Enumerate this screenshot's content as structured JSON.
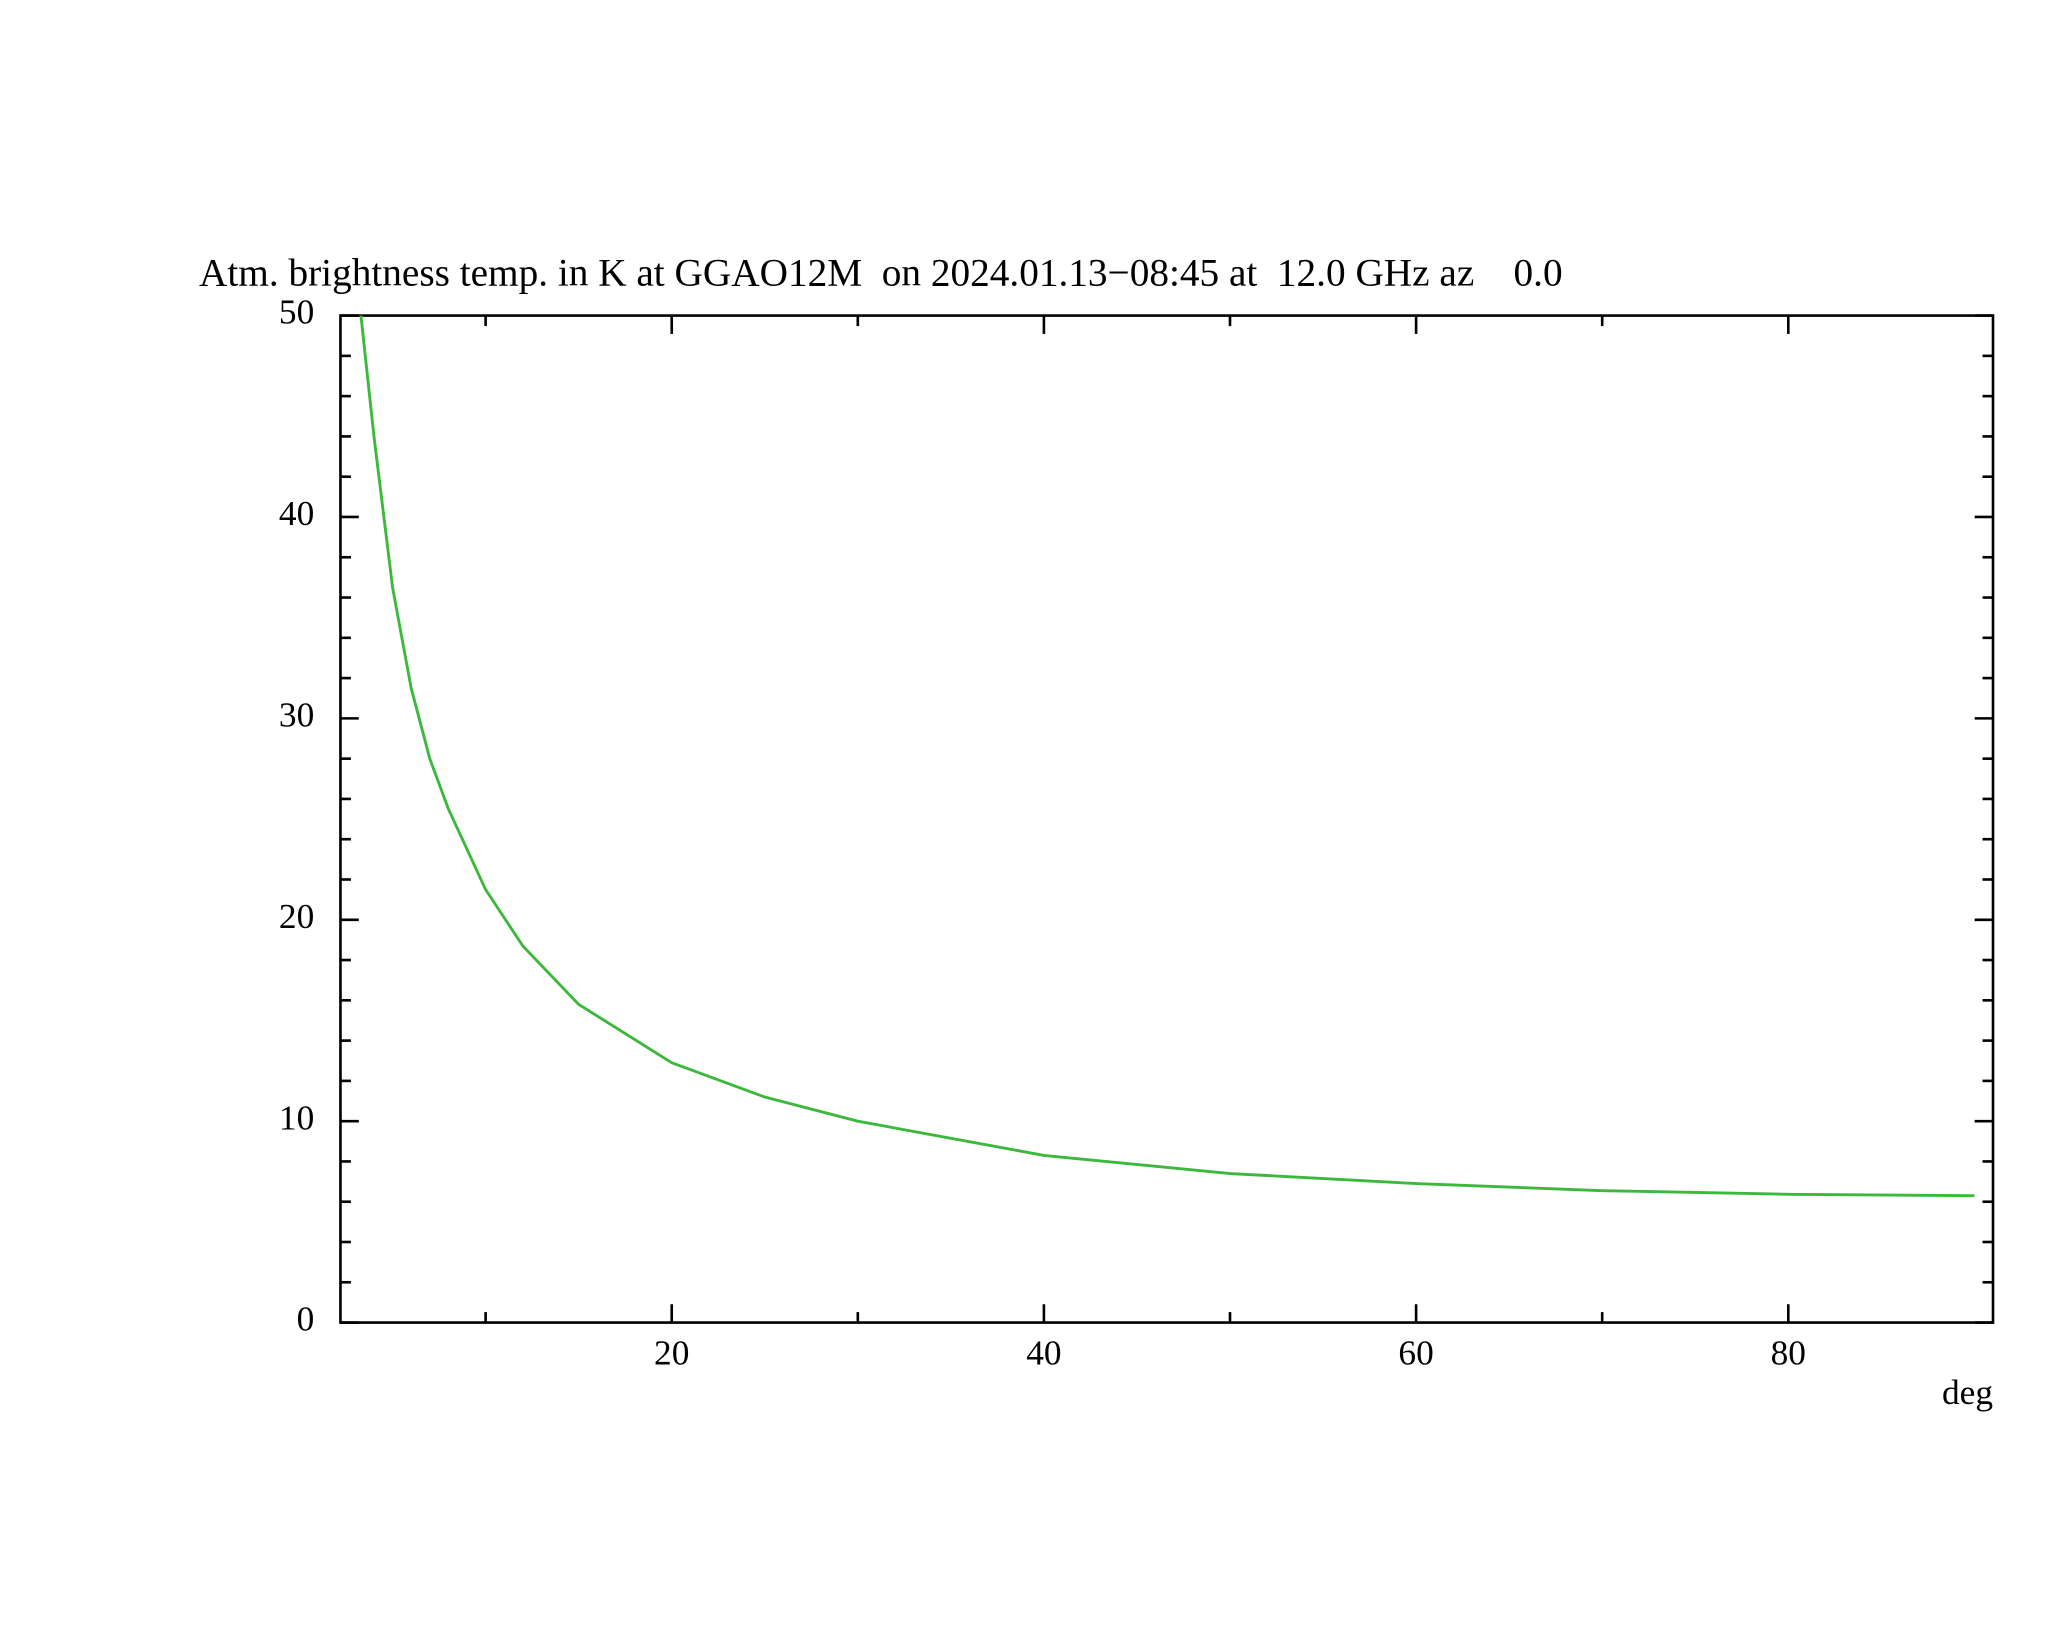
{
  "chart_data": {
    "type": "line",
    "title": "Atm. brightness temp. in K at GGAO12M  on 2024.01.13−08:45 at  12.0 GHz az    0.0",
    "x_label": "deg",
    "x": [
      3.3,
      4,
      5,
      6,
      7,
      8,
      10,
      12,
      15,
      20,
      25,
      30,
      40,
      50,
      60,
      70,
      80,
      90
    ],
    "series": [
      {
        "color": "#3cb83c",
        "values": [
          50,
          44,
          36.5,
          31.5,
          28,
          25.5,
          21.5,
          18.7,
          15.8,
          12.9,
          11.2,
          10.0,
          8.3,
          7.4,
          6.9,
          6.55,
          6.37,
          6.3
        ]
      }
    ],
    "xlim": [
      2.2,
      91
    ],
    "xticks": [
      20,
      40,
      60,
      80
    ],
    "xminorticks": [
      10,
      30,
      50,
      70
    ],
    "ylim": [
      0,
      50
    ],
    "yticks": [
      0,
      10,
      20,
      30,
      40,
      50
    ],
    "yminorticks": [
      2,
      4,
      6,
      8,
      12,
      14,
      16,
      18,
      22,
      24,
      26,
      28,
      32,
      34,
      36,
      38,
      42,
      44,
      46,
      48
    ],
    "grid": false
  }
}
